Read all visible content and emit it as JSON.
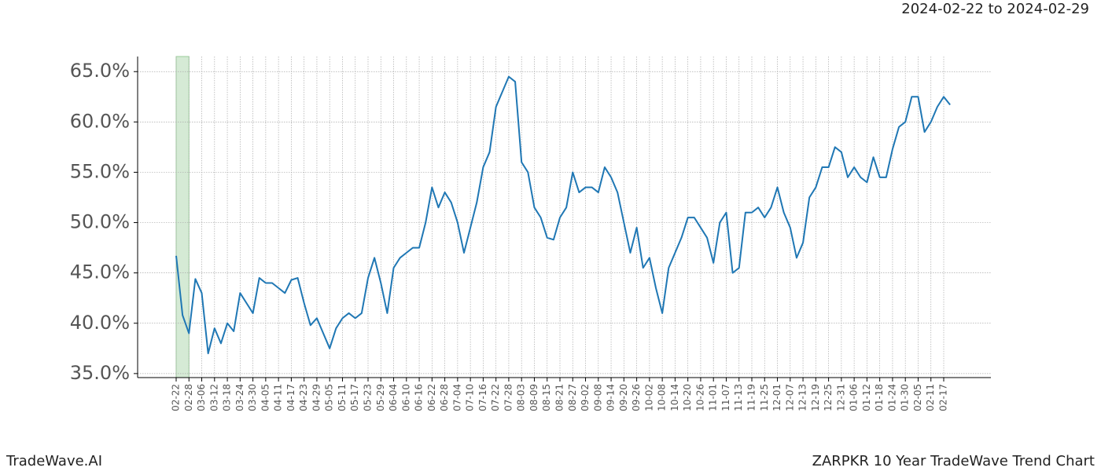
{
  "chart_data": {
    "type": "line",
    "title": "2024-02-22 to 2024-02-29",
    "footer_left": "TradeWave.AI",
    "footer_right": "ZARPKR 10 Year TradeWave Trend Chart",
    "categories": [
      "02-22",
      null,
      "02-28",
      null,
      "03-06",
      null,
      "03-12",
      null,
      "03-18",
      null,
      "03-24",
      null,
      "03-30",
      null,
      "04-05",
      null,
      "04-11",
      null,
      "04-17",
      null,
      "04-23",
      null,
      "04-29",
      null,
      "05-05",
      null,
      "05-11",
      null,
      "05-17",
      null,
      "05-23",
      null,
      "05-29",
      null,
      "06-04",
      null,
      "06-10",
      null,
      "06-16",
      null,
      "06-22",
      null,
      "06-28",
      null,
      "07-04",
      null,
      "07-10",
      null,
      "07-16",
      null,
      "07-22",
      null,
      "07-28",
      null,
      "08-03",
      null,
      "08-09",
      null,
      "08-15",
      null,
      "08-21",
      null,
      "08-27",
      null,
      "09-02",
      null,
      "09-08",
      null,
      "09-14",
      null,
      "09-20",
      null,
      "09-26",
      null,
      "10-02",
      null,
      "10-08",
      null,
      "10-14",
      null,
      "10-20",
      null,
      "10-26",
      null,
      "11-01",
      null,
      "11-07",
      null,
      "11-13",
      null,
      "11-19",
      null,
      "11-25",
      null,
      "12-01",
      null,
      "12-07",
      null,
      "12-13",
      null,
      "12-19",
      null,
      "12-25",
      null,
      "12-31",
      null,
      "01-06",
      null,
      "01-12",
      null,
      "01-18",
      null,
      "01-24",
      null,
      "01-30",
      null,
      "02-05",
      null,
      "02-11",
      null,
      "02-17",
      null
    ],
    "series": [
      {
        "color": "#1f77b4",
        "values": [
          46.7,
          40.8,
          39,
          44.4,
          43,
          37,
          39.5,
          38,
          40,
          39.2,
          43,
          42,
          41,
          44.5,
          44,
          44,
          43.5,
          43,
          44.3,
          44.5,
          42,
          39.8,
          40.5,
          39,
          37.5,
          39.5,
          40.5,
          41,
          40.5,
          41,
          44.5,
          46.5,
          44,
          41,
          45.5,
          46.5,
          47,
          47.5,
          47.5,
          50,
          53.5,
          51.5,
          53,
          52,
          50,
          47,
          49.5,
          52,
          55.5,
          57,
          61.5,
          63,
          64.5,
          64,
          56,
          55,
          51.5,
          50.5,
          48.5,
          48.3,
          50.5,
          51.5,
          55,
          53,
          53.5,
          53.5,
          53,
          55.5,
          54.5,
          53,
          50,
          47,
          49.5,
          45.5,
          46.5,
          43.5,
          41,
          45.5,
          47,
          48.5,
          50.5,
          50.5,
          49.5,
          48.5,
          46,
          50,
          51,
          45,
          45.5,
          51,
          51,
          51.5,
          50.5,
          51.5,
          53.5,
          51,
          49.5,
          46.5,
          48,
          52.5,
          53.5,
          55.5,
          55.5,
          57.5,
          57,
          54.5,
          55.5,
          54.5,
          54,
          56.5,
          54.5,
          54.5,
          57.3,
          59.5,
          60,
          62.5,
          62.5,
          59,
          60,
          61.5,
          62.5,
          61.7
        ]
      }
    ],
    "ylim": [
      34.6,
      66.5
    ],
    "yticks": [
      {
        "value": 35,
        "label": "35.0%"
      },
      {
        "value": 40,
        "label": "40.0%"
      },
      {
        "value": 45,
        "label": "45.0%"
      },
      {
        "value": 50,
        "label": "50.0%"
      },
      {
        "value": 55,
        "label": "55.0%"
      },
      {
        "value": 60,
        "label": "60.0%"
      },
      {
        "value": 65,
        "label": "65.0%"
      }
    ],
    "grid": true,
    "highlight": {
      "from": "02-22",
      "to": "02-28",
      "color": "#d5ead5"
    }
  }
}
